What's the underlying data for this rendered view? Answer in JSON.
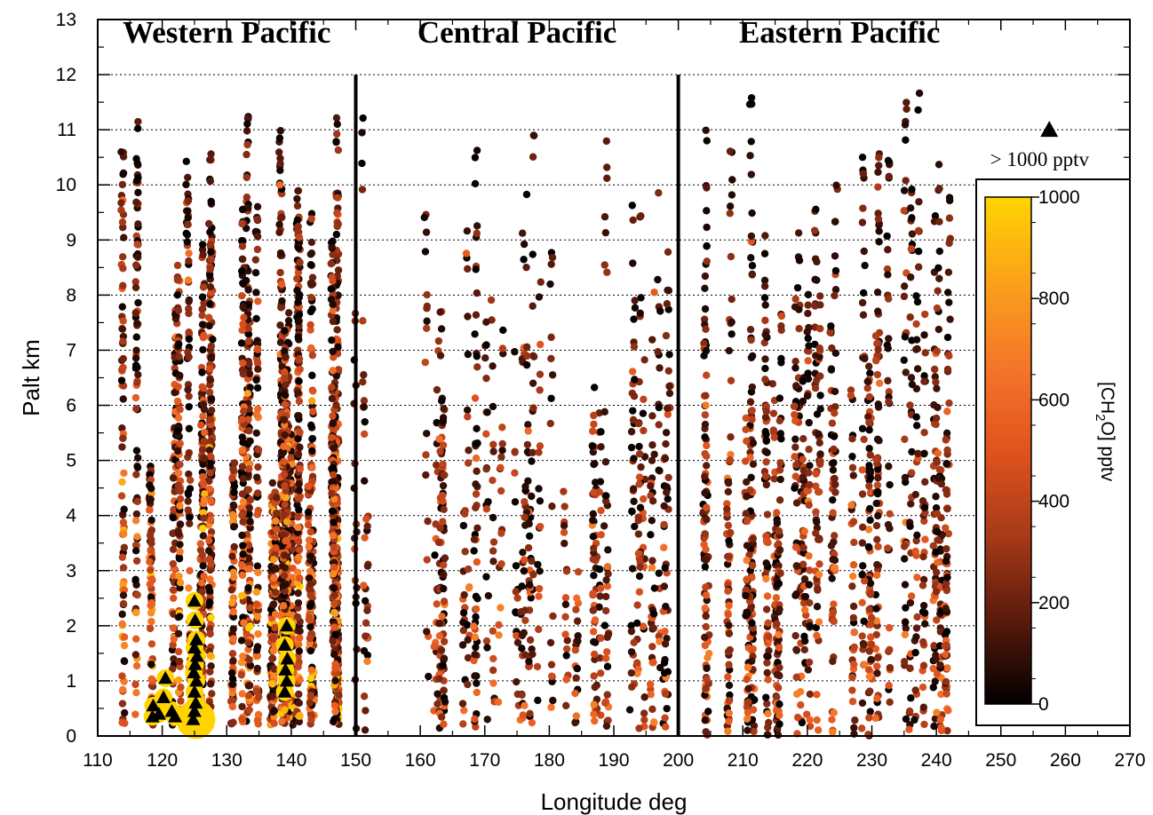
{
  "chart_data": {
    "type": "scatter",
    "xlabel": "Longitude deg",
    "ylabel": "Palt  km",
    "xlim": [
      110,
      270
    ],
    "ylim": [
      0,
      13
    ],
    "x_ticks": [
      110,
      120,
      130,
      140,
      150,
      160,
      170,
      180,
      190,
      200,
      210,
      220,
      230,
      240,
      250,
      260,
      270
    ],
    "y_ticks": [
      0,
      1,
      2,
      3,
      4,
      5,
      6,
      7,
      8,
      9,
      10,
      11,
      12,
      13
    ],
    "grid": "horizontal-dotted",
    "region_dividers": [
      150,
      200
    ],
    "regions": [
      {
        "label": "Western Pacific",
        "x": 130
      },
      {
        "label": "Central Pacific",
        "x": 175
      },
      {
        "label": "Eastern Pacific",
        "x": 225
      }
    ],
    "marker_legend": {
      "label": "> 1000 pptv",
      "marker": "triangle"
    },
    "colorbar": {
      "label": "[CH2O] pptv",
      "min": 0,
      "max": 1000,
      "ticks": [
        0,
        200,
        400,
        600,
        800,
        1000
      ],
      "colors": [
        "#000000",
        "#5a1a0c",
        "#a83a18",
        "#e0531e",
        "#f5762a",
        "#fba11a",
        "#ffd400"
      ]
    },
    "series": [
      {
        "region": "Western Pacific",
        "x_range": [
          114,
          150
        ],
        "y_range": [
          0.2,
          11.9
        ],
        "value_range_pptv": [
          0,
          1000
        ],
        "approx_points": 2600
      },
      {
        "region": "Central Pacific",
        "x_range": [
          150,
          200
        ],
        "y_range": [
          0.1,
          11.3
        ],
        "value_range_pptv": [
          0,
          700
        ],
        "approx_points": 800
      },
      {
        "region": "Eastern Pacific",
        "x_range": [
          200,
          242
        ],
        "y_range": [
          0.0,
          11.9
        ],
        "value_range_pptv": [
          0,
          700
        ],
        "approx_points": 1300
      }
    ],
    "high_values_gt_1000": [
      {
        "x": 118.5,
        "y": 0.35
      },
      {
        "x": 118.6,
        "y": 0.55
      },
      {
        "x": 119.5,
        "y": 0.4
      },
      {
        "x": 120.2,
        "y": 0.7
      },
      {
        "x": 120.5,
        "y": 1.05
      },
      {
        "x": 121.5,
        "y": 0.45
      },
      {
        "x": 122.0,
        "y": 0.35
      },
      {
        "x": 124.8,
        "y": 0.3
      },
      {
        "x": 125.0,
        "y": 0.45
      },
      {
        "x": 125.2,
        "y": 0.6
      },
      {
        "x": 125.0,
        "y": 0.8
      },
      {
        "x": 125.3,
        "y": 1.0
      },
      {
        "x": 124.9,
        "y": 1.15
      },
      {
        "x": 125.1,
        "y": 1.3
      },
      {
        "x": 125.4,
        "y": 1.45
      },
      {
        "x": 125.0,
        "y": 1.6
      },
      {
        "x": 125.3,
        "y": 1.75
      },
      {
        "x": 125.1,
        "y": 2.1
      },
      {
        "x": 125.0,
        "y": 2.45
      },
      {
        "x": 139.0,
        "y": 0.8
      },
      {
        "x": 139.3,
        "y": 1.0
      },
      {
        "x": 139.1,
        "y": 1.2
      },
      {
        "x": 139.4,
        "y": 1.4
      },
      {
        "x": 139.0,
        "y": 1.65
      },
      {
        "x": 139.3,
        "y": 2.0
      }
    ]
  }
}
